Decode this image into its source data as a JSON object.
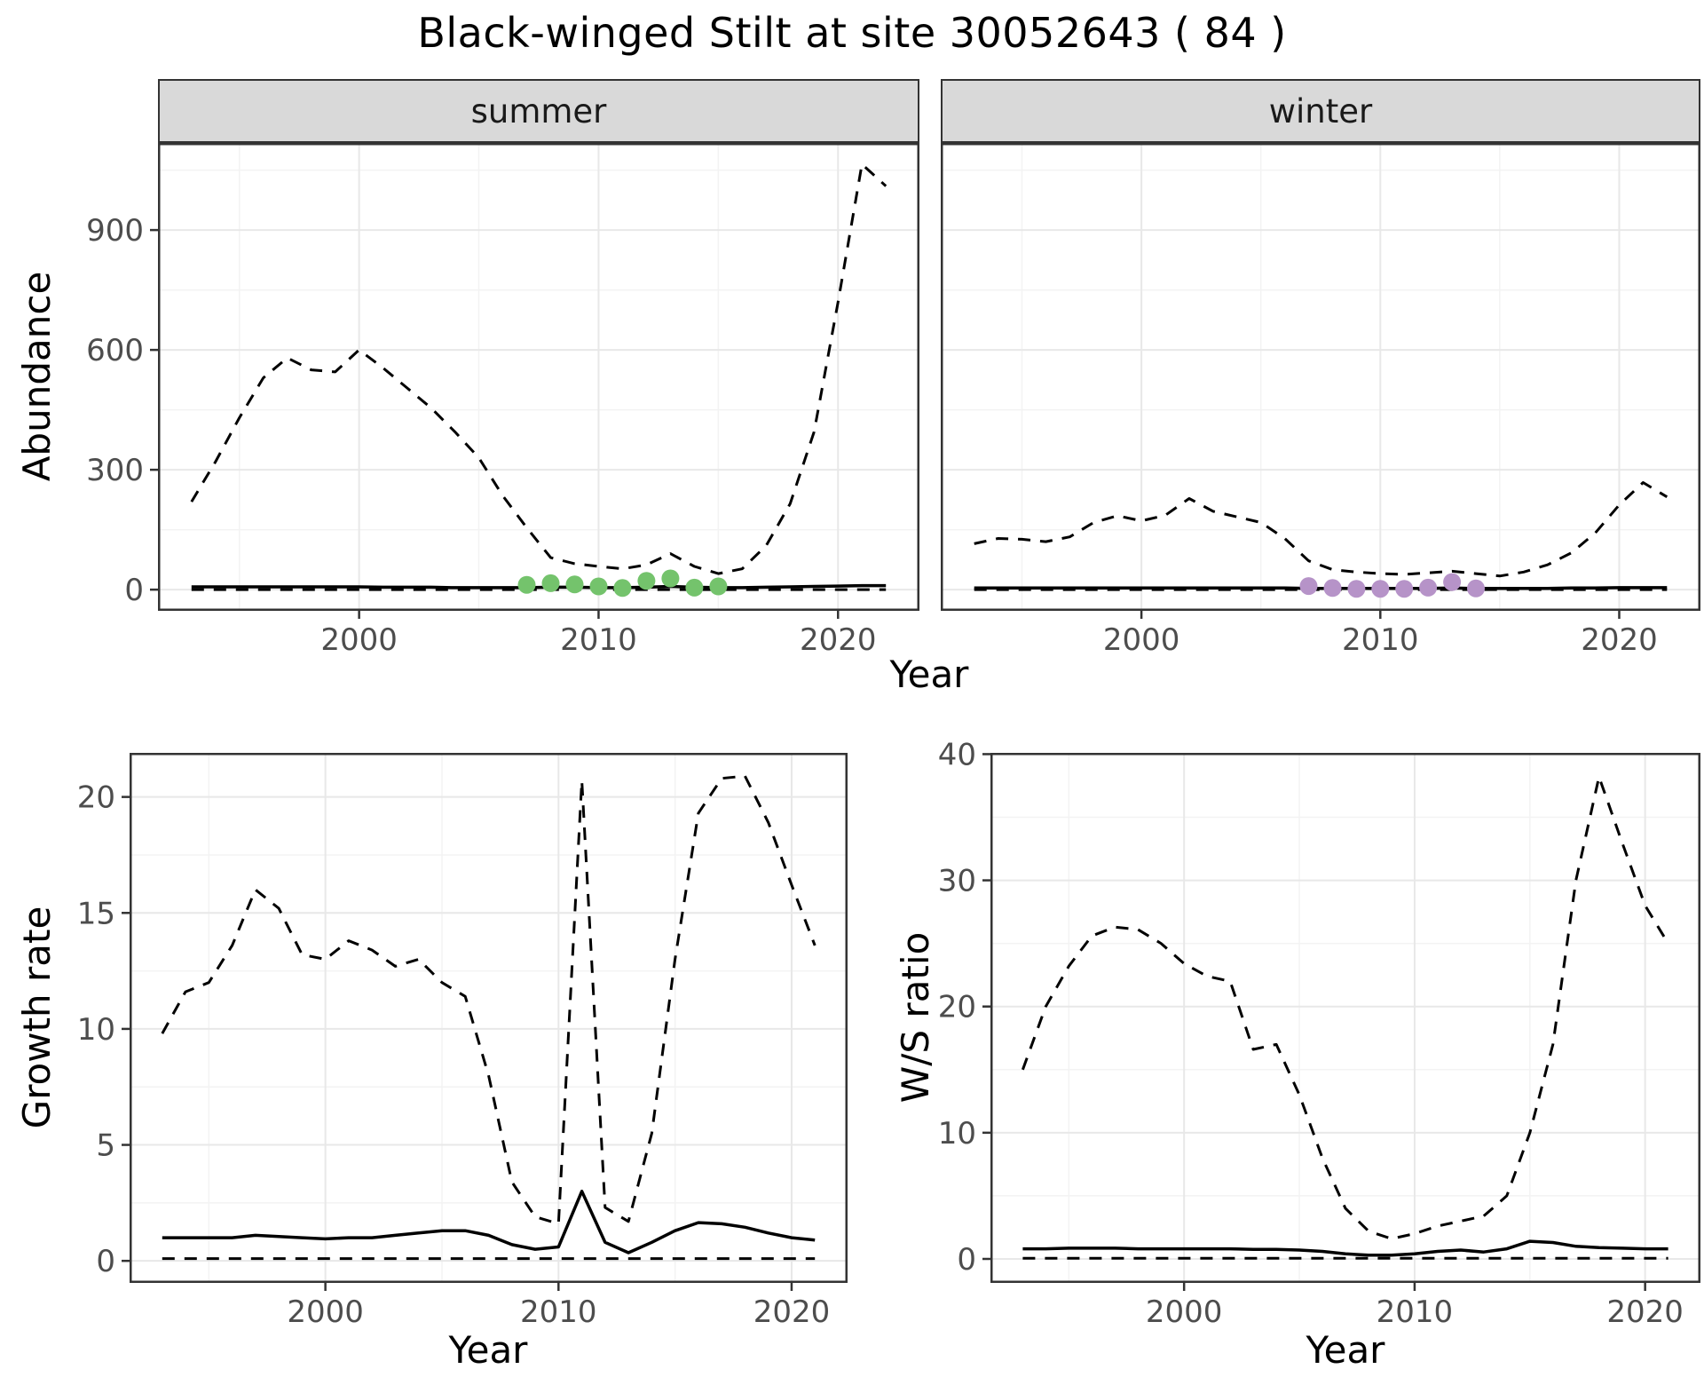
{
  "title": "Black-winged Stilt at site 30052643 ( 84 )",
  "top_row": {
    "ylabel": "Abundance",
    "xlabel": "Year",
    "facets": [
      {
        "label": "summer"
      },
      {
        "label": "winter"
      }
    ]
  },
  "bottom_left": {
    "ylabel": "Growth rate",
    "xlabel": "Year"
  },
  "bottom_right": {
    "ylabel": "W/S ratio",
    "xlabel": "Year"
  },
  "colors": {
    "summer_points": "#74c36c",
    "winter_points": "#b693c8",
    "line": "#000000",
    "strip_bg": "#d9d9d9",
    "grid_major": "#e8e8e8",
    "grid_minor": "#f3f3f3",
    "tick_text": "#4d4d4d",
    "panel_border": "#333333",
    "tick_mark": "#333333"
  },
  "chart_data": [
    {
      "id": "abundance_summer",
      "type": "line",
      "facet": "summer",
      "ylabel": "Abundance",
      "xlabel": "Year",
      "xlim": [
        1991.6,
        2023.4
      ],
      "ylim": [
        -53,
        1118
      ],
      "xticks": [
        2000,
        2010,
        2020
      ],
      "yticks": [
        0,
        300,
        600,
        900
      ],
      "xminor": [
        1995,
        2005,
        2015
      ],
      "yminor": [
        150,
        450,
        750,
        1050
      ],
      "show_y_labels": true,
      "x": [
        1993,
        1994,
        1995,
        1996,
        1997,
        1998,
        1999,
        2000,
        2001,
        2002,
        2003,
        2004,
        2005,
        2006,
        2007,
        2008,
        2009,
        2010,
        2011,
        2012,
        2013,
        2014,
        2015,
        2016,
        2017,
        2018,
        2019,
        2020,
        2021,
        2022
      ],
      "series": [
        {
          "name": "upper_ci",
          "style": "dashed",
          "y": [
            220,
            320,
            430,
            530,
            580,
            550,
            545,
            600,
            555,
            505,
            455,
            395,
            330,
            235,
            155,
            80,
            65,
            58,
            52,
            62,
            90,
            58,
            40,
            52,
            110,
            215,
            395,
            720,
            1065,
            1010
          ]
        },
        {
          "name": "mean",
          "style": "solid",
          "y": [
            7,
            7,
            7,
            7,
            7,
            7,
            7,
            7,
            6,
            6,
            6,
            5,
            5,
            5,
            5,
            6,
            6,
            5,
            5,
            6,
            8,
            6,
            5,
            5,
            6,
            7,
            8,
            9,
            10,
            10
          ]
        },
        {
          "name": "lower_ci",
          "style": "dashed",
          "y": [
            0,
            0,
            0,
            0,
            0,
            0,
            0,
            0,
            0,
            0,
            0,
            0,
            0,
            0,
            0,
            0,
            0,
            0,
            0,
            0,
            0,
            0,
            0,
            0,
            0,
            0,
            0,
            0,
            0,
            0
          ]
        }
      ],
      "points": {
        "name": "observed_counts_summer",
        "color": "#74c36c",
        "x": [
          2007,
          2008,
          2009,
          2010,
          2011,
          2012,
          2013,
          2014,
          2015
        ],
        "y": [
          12,
          16,
          13,
          8,
          4,
          22,
          28,
          5,
          8
        ]
      }
    },
    {
      "id": "abundance_winter",
      "type": "line",
      "facet": "winter",
      "ylabel": "Abundance",
      "xlabel": "Year",
      "xlim": [
        1991.6,
        2023.4
      ],
      "ylim": [
        -53,
        1118
      ],
      "xticks": [
        2000,
        2010,
        2020
      ],
      "yticks": [
        0,
        300,
        600,
        900
      ],
      "xminor": [
        1995,
        2005,
        2015
      ],
      "yminor": [
        150,
        450,
        750,
        1050
      ],
      "show_y_labels": false,
      "x": [
        1993,
        1994,
        1995,
        1996,
        1997,
        1998,
        1999,
        2000,
        2001,
        2002,
        2003,
        2004,
        2005,
        2006,
        2007,
        2008,
        2009,
        2010,
        2011,
        2012,
        2013,
        2014,
        2015,
        2016,
        2017,
        2018,
        2019,
        2020,
        2021,
        2022
      ],
      "series": [
        {
          "name": "upper_ci",
          "style": "dashed",
          "y": [
            115,
            128,
            126,
            120,
            132,
            168,
            185,
            172,
            186,
            228,
            196,
            182,
            168,
            128,
            72,
            50,
            44,
            40,
            38,
            42,
            46,
            40,
            34,
            44,
            62,
            92,
            142,
            212,
            268,
            232
          ]
        },
        {
          "name": "mean",
          "style": "solid",
          "y": [
            4,
            4,
            4,
            4,
            4,
            4,
            4,
            4,
            4,
            4,
            4,
            4,
            4,
            4,
            3,
            3,
            3,
            3,
            3,
            3,
            4,
            3,
            3,
            3,
            3,
            4,
            4,
            5,
            5,
            5
          ]
        },
        {
          "name": "lower_ci",
          "style": "dashed",
          "y": [
            0,
            0,
            0,
            0,
            0,
            0,
            0,
            0,
            0,
            0,
            0,
            0,
            0,
            0,
            0,
            0,
            0,
            0,
            0,
            0,
            0,
            0,
            0,
            0,
            0,
            0,
            0,
            0,
            0,
            0
          ]
        }
      ],
      "points": {
        "name": "observed_counts_winter",
        "color": "#b693c8",
        "x": [
          2007,
          2008,
          2009,
          2010,
          2011,
          2012,
          2013,
          2014
        ],
        "y": [
          9,
          4,
          2,
          2,
          2,
          5,
          19,
          3
        ]
      }
    },
    {
      "id": "growth_rate",
      "type": "line",
      "facet": null,
      "ylabel": "Growth rate",
      "xlabel": "Year",
      "xlim": [
        1991.6,
        2022.4
      ],
      "ylim": [
        -0.95,
        21.9
      ],
      "xticks": [
        2000,
        2010,
        2020
      ],
      "yticks": [
        0,
        5,
        10,
        15,
        20
      ],
      "xminor": [
        1995,
        2005,
        2015
      ],
      "yminor": [
        2.5,
        7.5,
        12.5,
        17.5
      ],
      "show_y_labels": true,
      "x": [
        1993,
        1994,
        1995,
        1996,
        1997,
        1998,
        1999,
        2000,
        2001,
        2002,
        2003,
        2004,
        2005,
        2006,
        2007,
        2008,
        2009,
        2010,
        2011,
        2012,
        2013,
        2014,
        2015,
        2016,
        2017,
        2018,
        2019,
        2020,
        2021
      ],
      "series": [
        {
          "name": "upper_ci",
          "style": "dashed",
          "y": [
            9.8,
            11.6,
            12.0,
            13.6,
            16.0,
            15.2,
            13.2,
            13.0,
            13.8,
            13.4,
            12.7,
            13.0,
            12.0,
            11.4,
            8.0,
            3.4,
            1.9,
            1.6,
            20.7,
            2.3,
            1.7,
            5.5,
            13.0,
            19.3,
            20.8,
            20.9,
            18.9,
            16.2,
            13.6
          ]
        },
        {
          "name": "mean",
          "style": "solid",
          "y": [
            1.0,
            1.0,
            1.0,
            1.0,
            1.1,
            1.05,
            1.0,
            0.95,
            1.0,
            1.0,
            1.1,
            1.2,
            1.3,
            1.3,
            1.1,
            0.7,
            0.5,
            0.6,
            3.0,
            0.8,
            0.35,
            0.8,
            1.3,
            1.65,
            1.6,
            1.45,
            1.2,
            1.0,
            0.9
          ]
        },
        {
          "name": "lower_ci",
          "style": "dashed",
          "y": [
            0.1,
            0.1,
            0.1,
            0.1,
            0.1,
            0.1,
            0.1,
            0.1,
            0.1,
            0.1,
            0.1,
            0.1,
            0.1,
            0.1,
            0.1,
            0.1,
            0.1,
            0.1,
            0.1,
            0.1,
            0.1,
            0.1,
            0.1,
            0.1,
            0.1,
            0.1,
            0.1,
            0.1,
            0.1
          ]
        }
      ],
      "points": null
    },
    {
      "id": "ws_ratio",
      "type": "line",
      "facet": null,
      "ylabel": "W/S ratio",
      "xlabel": "Year",
      "xlim": [
        1991.6,
        2022.4
      ],
      "ylim": [
        -1.9,
        40.1
      ],
      "xticks": [
        2000,
        2010,
        2020
      ],
      "yticks": [
        0,
        10,
        20,
        30,
        40
      ],
      "xminor": [
        1995,
        2005,
        2015
      ],
      "yminor": [
        5,
        15,
        25,
        35
      ],
      "show_y_labels": true,
      "x": [
        1993,
        1994,
        1995,
        1996,
        1997,
        1998,
        1999,
        2000,
        2001,
        2002,
        2003,
        2004,
        2005,
        2006,
        2007,
        2008,
        2009,
        2010,
        2011,
        2012,
        2013,
        2014,
        2015,
        2016,
        2017,
        2018,
        2019,
        2020,
        2021
      ],
      "series": [
        {
          "name": "upper_ci",
          "style": "dashed",
          "y": [
            15.0,
            20.0,
            23.2,
            25.6,
            26.3,
            26.1,
            25.0,
            23.4,
            22.4,
            22.0,
            16.6,
            17.0,
            13.0,
            8.0,
            4.0,
            2.2,
            1.6,
            2.0,
            2.6,
            3.0,
            3.4,
            5.0,
            10.0,
            17.0,
            30.0,
            38.2,
            33.0,
            28.0,
            25.0
          ]
        },
        {
          "name": "mean",
          "style": "solid",
          "y": [
            0.8,
            0.8,
            0.85,
            0.85,
            0.85,
            0.8,
            0.8,
            0.8,
            0.8,
            0.8,
            0.75,
            0.75,
            0.7,
            0.6,
            0.4,
            0.3,
            0.3,
            0.4,
            0.6,
            0.7,
            0.55,
            0.8,
            1.4,
            1.3,
            1.0,
            0.9,
            0.85,
            0.8,
            0.8
          ]
        },
        {
          "name": "lower_ci",
          "style": "dashed",
          "y": [
            0.05,
            0.05,
            0.05,
            0.05,
            0.05,
            0.05,
            0.05,
            0.05,
            0.05,
            0.05,
            0.05,
            0.05,
            0.05,
            0.05,
            0.05,
            0.05,
            0.05,
            0.05,
            0.05,
            0.05,
            0.05,
            0.05,
            0.05,
            0.05,
            0.05,
            0.05,
            0.05,
            0.05,
            0.05
          ]
        }
      ],
      "points": null
    }
  ]
}
